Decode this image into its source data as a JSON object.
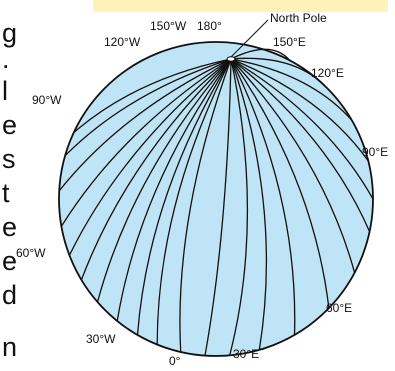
{
  "page": {
    "side_letters": [
      "g",
      ".",
      "l",
      "e",
      "s",
      "t",
      "e",
      "e",
      "d",
      "n"
    ],
    "banner_color": "#fdf2b8"
  },
  "globe": {
    "fill_color": "#bfe4f5",
    "line_color": "#111111",
    "pole_label": "North Pole",
    "labels": {
      "w150": "150°W",
      "d180": "180°",
      "e150": "150°E",
      "w120": "120°W",
      "e120": "120°E",
      "w90": "90°W",
      "e90": "90°E",
      "w60": "60°W",
      "e60": "60°E",
      "w30": "30°W",
      "d0": "0°",
      "e30": "30°E"
    }
  }
}
